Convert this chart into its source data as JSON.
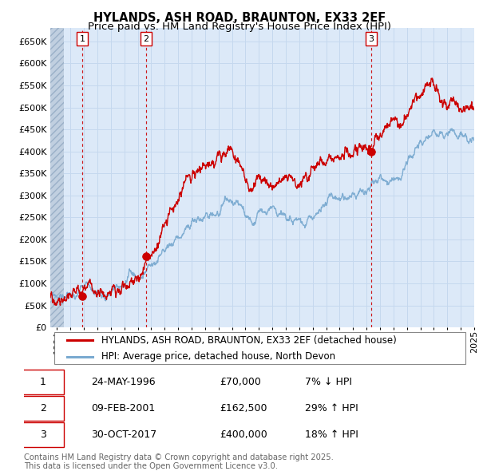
{
  "title": "HYLANDS, ASH ROAD, BRAUNTON, EX33 2EF",
  "subtitle": "Price paid vs. HM Land Registry's House Price Index (HPI)",
  "ylim": [
    0,
    680000
  ],
  "yticks": [
    0,
    50000,
    100000,
    150000,
    200000,
    250000,
    300000,
    350000,
    400000,
    450000,
    500000,
    550000,
    600000,
    650000
  ],
  "xlim_start": 1994.0,
  "xlim_end": 2025.5,
  "hatch_end": 1995.0,
  "background_color": "#ffffff",
  "plot_bg_color": "#dce9f8",
  "grid_color": "#c5d8ee",
  "hatch_color": "#c0cfe0",
  "sale_color": "#cc0000",
  "hpi_color": "#7aaad0",
  "vline_color": "#cc0000",
  "legend_sale_label": "HYLANDS, ASH ROAD, BRAUNTON, EX33 2EF (detached house)",
  "legend_hpi_label": "HPI: Average price, detached house, North Devon",
  "sales": [
    {
      "date": 1996.39,
      "price": 70000,
      "label": "1"
    },
    {
      "date": 2001.11,
      "price": 162500,
      "label": "2"
    },
    {
      "date": 2017.83,
      "price": 400000,
      "label": "3"
    }
  ],
  "table_rows": [
    {
      "num": "1",
      "date": "24-MAY-1996",
      "price": "£70,000",
      "change": "7% ↓ HPI"
    },
    {
      "num": "2",
      "date": "09-FEB-2001",
      "price": "£162,500",
      "change": "29% ↑ HPI"
    },
    {
      "num": "3",
      "date": "30-OCT-2017",
      "price": "£400,000",
      "change": "18% ↑ HPI"
    }
  ],
  "footer": "Contains HM Land Registry data © Crown copyright and database right 2025.\nThis data is licensed under the Open Government Licence v3.0.",
  "title_fontsize": 10.5,
  "subtitle_fontsize": 9.5,
  "tick_fontsize": 8,
  "legend_fontsize": 8.5,
  "table_fontsize": 9,
  "footer_fontsize": 7.2
}
